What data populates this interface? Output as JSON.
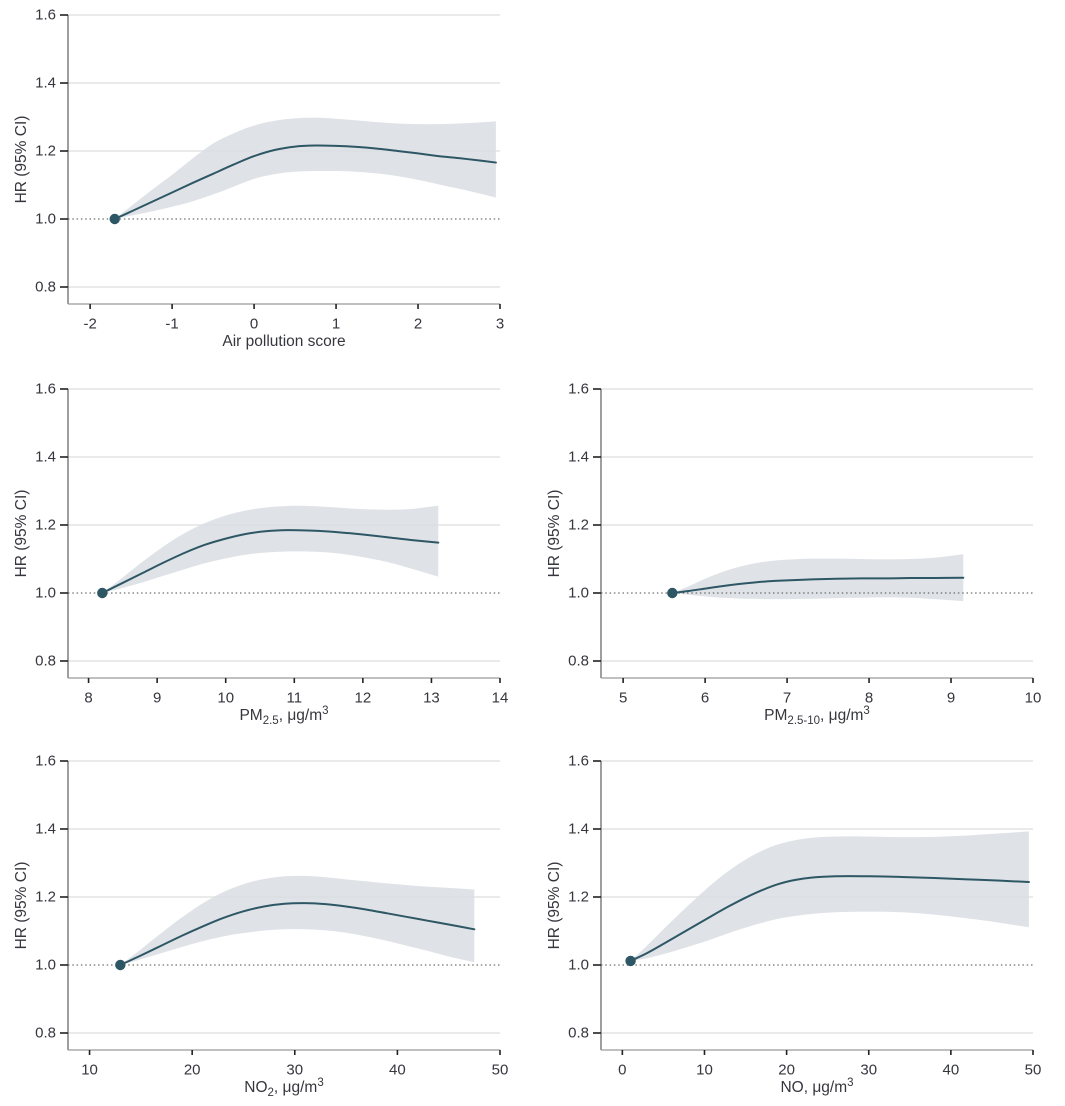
{
  "figure": {
    "ylabel": "HR (95% CI)",
    "ylim": [
      0.75,
      1.6
    ],
    "yticks": [
      0.8,
      1.0,
      1.2,
      1.4,
      1.6
    ],
    "ytick_labels": [
      "0.8",
      "1.0",
      "1.2",
      "1.4",
      "1.6"
    ],
    "reference_line": 1.0,
    "grid": true,
    "legend": "none",
    "colors": {
      "curve": "#2e5765",
      "band": "#d9dee3",
      "gridline": "#e4e4e4",
      "y_axis": "#5f5f5f",
      "x_axis": "#9a9a9a",
      "tick": "#222222",
      "text": "#36363e",
      "reference_dotted": "#4d4d4d"
    }
  },
  "chart_data": [
    {
      "id": "air-pollution-score",
      "type": "area",
      "xlabel_text": "Air pollution score",
      "xlabel_parts": [
        {
          "t": "Air pollution score",
          "s": "n"
        }
      ],
      "xlim": [
        -2.27,
        3.0
      ],
      "xticks": [
        -2,
        -1,
        0,
        1,
        2,
        3
      ],
      "xtick_labels": [
        "-2",
        "-1",
        "0",
        "1",
        "2",
        "3"
      ],
      "ref_point": {
        "x": -1.7,
        "y": 1.0
      },
      "x": [
        -1.7,
        -1.5,
        -1.25,
        -1.0,
        -0.75,
        -0.5,
        -0.25,
        0.0,
        0.25,
        0.5,
        0.75,
        1.0,
        1.25,
        1.5,
        1.75,
        2.0,
        2.25,
        2.5,
        2.75,
        2.95
      ],
      "hr": [
        1.0,
        1.022,
        1.05,
        1.078,
        1.106,
        1.133,
        1.16,
        1.185,
        1.203,
        1.213,
        1.216,
        1.215,
        1.212,
        1.207,
        1.2,
        1.193,
        1.185,
        1.179,
        1.172,
        1.166
      ],
      "upper": [
        1.0,
        1.038,
        1.085,
        1.13,
        1.178,
        1.222,
        1.252,
        1.275,
        1.289,
        1.296,
        1.298,
        1.295,
        1.29,
        1.285,
        1.281,
        1.279,
        1.279,
        1.281,
        1.284,
        1.287
      ],
      "lower": [
        1.0,
        1.01,
        1.022,
        1.036,
        1.052,
        1.072,
        1.095,
        1.118,
        1.132,
        1.139,
        1.141,
        1.141,
        1.139,
        1.134,
        1.126,
        1.115,
        1.102,
        1.089,
        1.075,
        1.063
      ]
    },
    {
      "id": "pm25",
      "type": "area",
      "xlabel_text": "PM2.5, μg/m3",
      "xlabel_parts": [
        {
          "t": "PM",
          "s": "n"
        },
        {
          "t": "2.5",
          "s": "sub"
        },
        {
          "t": ", μg/m",
          "s": "n"
        },
        {
          "t": "3",
          "s": "sup"
        }
      ],
      "xlim": [
        7.7,
        14.0
      ],
      "xticks": [
        8,
        9,
        10,
        11,
        12,
        13,
        14
      ],
      "xtick_labels": [
        "8",
        "9",
        "10",
        "11",
        "12",
        "13",
        "14"
      ],
      "ref_point": {
        "x": 8.2,
        "y": 1.0
      },
      "x": [
        8.2,
        8.5,
        8.8,
        9.1,
        9.4,
        9.7,
        10.0,
        10.3,
        10.6,
        10.9,
        11.2,
        11.5,
        11.8,
        12.1,
        12.4,
        12.7,
        13.1
      ],
      "hr": [
        1.0,
        1.03,
        1.06,
        1.09,
        1.118,
        1.142,
        1.16,
        1.174,
        1.182,
        1.185,
        1.184,
        1.181,
        1.176,
        1.17,
        1.163,
        1.156,
        1.148
      ],
      "upper": [
        1.0,
        1.046,
        1.094,
        1.138,
        1.176,
        1.206,
        1.228,
        1.243,
        1.252,
        1.256,
        1.256,
        1.253,
        1.249,
        1.246,
        1.245,
        1.247,
        1.257
      ],
      "lower": [
        1.0,
        1.015,
        1.032,
        1.051,
        1.07,
        1.088,
        1.102,
        1.113,
        1.119,
        1.122,
        1.122,
        1.119,
        1.112,
        1.102,
        1.089,
        1.072,
        1.048
      ]
    },
    {
      "id": "pm25-10",
      "type": "area",
      "xlabel_text": "PM2.5-10, μg/m3",
      "xlabel_parts": [
        {
          "t": "PM",
          "s": "n"
        },
        {
          "t": "2.5-10",
          "s": "sub"
        },
        {
          "t": ", μg/m",
          "s": "n"
        },
        {
          "t": "3",
          "s": "sup"
        }
      ],
      "xlim": [
        4.73,
        10.0
      ],
      "xticks": [
        5,
        6,
        7,
        8,
        9,
        10
      ],
      "xtick_labels": [
        "5",
        "6",
        "7",
        "8",
        "9",
        "10"
      ],
      "ref_point": {
        "x": 5.6,
        "y": 1.0
      },
      "x": [
        5.6,
        5.8,
        6.0,
        6.2,
        6.4,
        6.6,
        6.8,
        7.0,
        7.3,
        7.6,
        7.9,
        8.2,
        8.5,
        8.8,
        9.15
      ],
      "hr": [
        1.0,
        1.006,
        1.013,
        1.02,
        1.026,
        1.031,
        1.035,
        1.037,
        1.04,
        1.042,
        1.043,
        1.043,
        1.044,
        1.044,
        1.045
      ],
      "upper": [
        1.0,
        1.02,
        1.042,
        1.061,
        1.076,
        1.087,
        1.094,
        1.098,
        1.101,
        1.101,
        1.1,
        1.099,
        1.1,
        1.104,
        1.114
      ],
      "lower": [
        1.0,
        0.995,
        0.99,
        0.986,
        0.984,
        0.983,
        0.982,
        0.982,
        0.983,
        0.985,
        0.986,
        0.987,
        0.986,
        0.982,
        0.976
      ]
    },
    {
      "id": "no2",
      "type": "area",
      "xlabel_text": "NO2, μg/m3",
      "xlabel_parts": [
        {
          "t": "NO",
          "s": "n"
        },
        {
          "t": "2",
          "s": "sub"
        },
        {
          "t": ", μg/m",
          "s": "n"
        },
        {
          "t": "3",
          "s": "sup"
        }
      ],
      "xlim": [
        7.9,
        50.0
      ],
      "xticks": [
        10,
        20,
        30,
        40,
        50
      ],
      "xtick_labels": [
        "10",
        "20",
        "30",
        "40",
        "50"
      ],
      "ref_point": {
        "x": 13.0,
        "y": 1.0
      },
      "x": [
        13.0,
        15.0,
        17.0,
        19.0,
        21.0,
        23.0,
        25.0,
        27.0,
        29.0,
        31.0,
        33.0,
        35.0,
        37.0,
        39.0,
        41.0,
        43.0,
        45.0,
        47.5
      ],
      "hr": [
        1.0,
        1.028,
        1.057,
        1.086,
        1.113,
        1.138,
        1.158,
        1.172,
        1.18,
        1.182,
        1.179,
        1.172,
        1.163,
        1.152,
        1.141,
        1.13,
        1.119,
        1.105
      ],
      "upper": [
        1.0,
        1.046,
        1.094,
        1.14,
        1.181,
        1.214,
        1.238,
        1.253,
        1.261,
        1.262,
        1.258,
        1.252,
        1.246,
        1.24,
        1.235,
        1.23,
        1.227,
        1.222
      ],
      "lower": [
        1.0,
        1.017,
        1.035,
        1.053,
        1.07,
        1.084,
        1.094,
        1.101,
        1.105,
        1.105,
        1.102,
        1.095,
        1.084,
        1.071,
        1.056,
        1.041,
        1.025,
        1.008
      ]
    },
    {
      "id": "no",
      "type": "area",
      "xlabel_text": "NO, μg/m3",
      "xlabel_parts": [
        {
          "t": "NO, μg/m",
          "s": "n"
        },
        {
          "t": "3",
          "s": "sup"
        }
      ],
      "xlim": [
        -2.6,
        50.0
      ],
      "xticks": [
        0,
        10,
        20,
        30,
        40,
        50
      ],
      "xtick_labels": [
        "0",
        "10",
        "20",
        "30",
        "40",
        "50"
      ],
      "ref_point": {
        "x": 1.0,
        "y": 1.012
      },
      "x": [
        1.0,
        3.0,
        5.0,
        7.0,
        9.0,
        11.0,
        13.0,
        15.0,
        17.0,
        19.0,
        21.0,
        23.0,
        26.0,
        30.0,
        34.0,
        38.0,
        42.0,
        46.0,
        49.5
      ],
      "hr": [
        1.012,
        1.035,
        1.062,
        1.09,
        1.118,
        1.146,
        1.173,
        1.198,
        1.22,
        1.238,
        1.25,
        1.257,
        1.261,
        1.261,
        1.259,
        1.256,
        1.252,
        1.248,
        1.244
      ],
      "upper": [
        1.012,
        1.057,
        1.105,
        1.152,
        1.197,
        1.24,
        1.278,
        1.31,
        1.336,
        1.355,
        1.367,
        1.374,
        1.378,
        1.378,
        1.376,
        1.377,
        1.381,
        1.387,
        1.393
      ],
      "lower": [
        1.012,
        1.02,
        1.032,
        1.046,
        1.061,
        1.077,
        1.094,
        1.11,
        1.124,
        1.136,
        1.144,
        1.15,
        1.155,
        1.157,
        1.155,
        1.148,
        1.137,
        1.124,
        1.111
      ]
    }
  ]
}
